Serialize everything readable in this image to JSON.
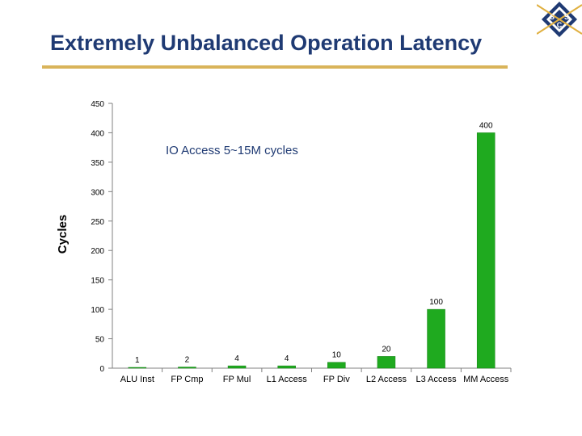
{
  "slide": {
    "title": "Extremely Unbalanced Operation Latency",
    "logo_letters": [
      "S",
      "S",
      "C"
    ]
  },
  "colors": {
    "title": "#1f3a73",
    "rule": "#d9b45a",
    "bar": "#1faa1f",
    "bar_edge": "#138013",
    "axis": "#808080"
  },
  "chart_data": {
    "type": "bar",
    "title": "",
    "xlabel": "",
    "ylabel": "Cycles",
    "ylim": [
      0,
      450
    ],
    "yticks": [
      0,
      50,
      100,
      150,
      200,
      250,
      300,
      350,
      400,
      450
    ],
    "grid": false,
    "legend": "none",
    "categories": [
      "ALU Inst",
      "FP Cmp",
      "FP Mul",
      "L1 Access",
      "FP Div",
      "L2 Access",
      "L3 Access",
      "MM Access"
    ],
    "values": [
      1,
      2,
      4,
      4,
      10,
      20,
      100,
      400
    ],
    "annotation": "IO Access 5~15M cycles"
  }
}
